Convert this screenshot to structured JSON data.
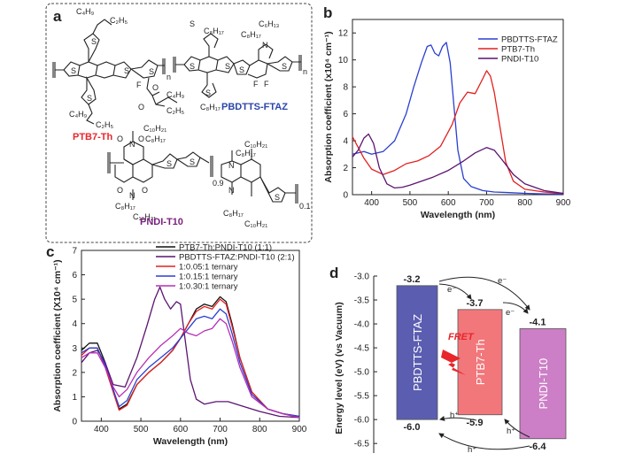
{
  "panels": {
    "a": {
      "letter": "a",
      "molecules": [
        {
          "name": "PTB7-Th",
          "color": "#e8262b"
        },
        {
          "name": "PBDTTS-FTAZ",
          "color": "#2b46a8"
        },
        {
          "name": "PNDI-T10",
          "color": "#7a1f7d"
        }
      ],
      "atoms": {
        "c4h9": "C₄H₉",
        "c2h5": "C₂H₅",
        "c6h13": "C₆H₁₃",
        "c8h17": "C₈H₁₇",
        "c10h21": "C₁₀H₂₁",
        "S": "S",
        "F": "F",
        "O": "O",
        "N": "N",
        "n": "n",
        "frac1": "0.9",
        "frac2": "0.1"
      }
    },
    "b": {
      "letter": "b"
    },
    "c": {
      "letter": "c"
    },
    "d": {
      "letter": "d"
    }
  },
  "chart_data": [
    {
      "type": "line",
      "panel": "b",
      "xlabel": "Wavelength (nm)",
      "ylabel": "Absorption coefficient (x10⁴ cm⁻¹)",
      "xlim": [
        350,
        900
      ],
      "ylim": [
        0,
        13
      ],
      "xticks": [
        400,
        500,
        600,
        700,
        800,
        900
      ],
      "yticks": [
        0,
        2,
        4,
        6,
        8,
        10,
        12
      ],
      "legend_position": "top-right",
      "series": [
        {
          "name": "PBDTTS-FTAZ",
          "color": "#2a3fd1",
          "x": [
            350,
            380,
            400,
            430,
            460,
            490,
            510,
            530,
            545,
            555,
            565,
            575,
            585,
            595,
            605,
            615,
            625,
            640,
            660,
            690,
            720,
            760,
            800,
            850,
            900
          ],
          "y": [
            3.0,
            3.2,
            3.0,
            3.2,
            4.0,
            6.0,
            8.0,
            9.8,
            11.0,
            11.1,
            10.5,
            10.3,
            11.0,
            11.3,
            9.8,
            6.5,
            3.3,
            1.2,
            0.6,
            0.3,
            0.2,
            0.15,
            0.1,
            0.05,
            0.05
          ]
        },
        {
          "name": "PTB7-Th",
          "color": "#e32020",
          "x": [
            350,
            365,
            380,
            400,
            430,
            460,
            490,
            520,
            550,
            580,
            610,
            630,
            650,
            670,
            690,
            700,
            710,
            720,
            735,
            750,
            770,
            800,
            850,
            900
          ],
          "y": [
            4.3,
            3.5,
            2.7,
            1.9,
            1.5,
            1.8,
            2.3,
            2.5,
            2.9,
            3.6,
            5.2,
            6.8,
            7.6,
            7.5,
            8.6,
            9.2,
            8.8,
            7.6,
            5.0,
            2.4,
            1.0,
            0.4,
            0.2,
            0.1
          ]
        },
        {
          "name": "PNDI-T10",
          "color": "#5b1470",
          "x": [
            350,
            365,
            380,
            392,
            405,
            420,
            440,
            460,
            480,
            500,
            530,
            560,
            600,
            640,
            670,
            700,
            720,
            740,
            770,
            800,
            850,
            900
          ],
          "y": [
            2.8,
            3.3,
            4.2,
            4.5,
            3.8,
            2.0,
            0.8,
            0.5,
            0.55,
            0.7,
            1.0,
            1.3,
            1.8,
            2.5,
            3.1,
            3.5,
            3.3,
            2.6,
            1.5,
            0.8,
            0.3,
            0.1
          ]
        }
      ]
    },
    {
      "type": "line",
      "panel": "c",
      "xlabel": "Wavelength (nm)",
      "ylabel": "Absorption coefficient (X10⁴ cm⁻¹)",
      "xlim": [
        350,
        900
      ],
      "ylim": [
        0,
        7
      ],
      "xticks": [
        400,
        500,
        600,
        700,
        800,
        900
      ],
      "yticks": [
        0,
        1,
        2,
        3,
        4,
        5,
        6,
        7
      ],
      "legend_position": "top-right",
      "series": [
        {
          "name": "PTB7-Th:PNDI-T10 (1:1)",
          "color": "#111111",
          "x": [
            350,
            370,
            390,
            410,
            430,
            445,
            465,
            490,
            520,
            550,
            580,
            600,
            620,
            640,
            660,
            680,
            700,
            715,
            730,
            750,
            780,
            820,
            860,
            900
          ],
          "y": [
            2.9,
            3.2,
            3.2,
            2.4,
            1.3,
            0.5,
            0.7,
            1.5,
            2.0,
            2.4,
            2.9,
            3.4,
            4.0,
            4.6,
            4.8,
            4.7,
            5.1,
            4.9,
            4.0,
            2.6,
            1.2,
            0.5,
            0.3,
            0.2
          ]
        },
        {
          "name": "PBDTTS-FTAZ:PNDI-T10 (2:1)",
          "color": "#5b1470",
          "x": [
            350,
            370,
            390,
            410,
            430,
            460,
            490,
            515,
            535,
            548,
            560,
            575,
            590,
            600,
            612,
            625,
            640,
            660,
            690,
            720,
            760,
            800,
            850,
            900
          ],
          "y": [
            2.4,
            2.8,
            2.9,
            2.4,
            1.5,
            1.4,
            2.6,
            3.9,
            5.0,
            5.5,
            5.0,
            4.6,
            4.9,
            4.8,
            3.3,
            1.7,
            0.9,
            0.7,
            0.8,
            0.8,
            0.6,
            0.4,
            0.2,
            0.15
          ]
        },
        {
          "name": "1:0.05:1 ternary",
          "color": "#e32020",
          "x": [
            350,
            370,
            390,
            410,
            430,
            445,
            465,
            490,
            520,
            550,
            580,
            600,
            620,
            640,
            660,
            680,
            700,
            715,
            730,
            750,
            780,
            820,
            860,
            900
          ],
          "y": [
            2.7,
            3.0,
            3.0,
            2.2,
            1.2,
            0.45,
            0.65,
            1.5,
            2.0,
            2.4,
            2.9,
            3.4,
            4.0,
            4.5,
            4.7,
            4.6,
            5.0,
            4.8,
            3.9,
            2.6,
            1.2,
            0.5,
            0.3,
            0.15
          ]
        },
        {
          "name": "1:0.15:1 ternary",
          "color": "#2a3fd1",
          "x": [
            350,
            370,
            390,
            410,
            430,
            445,
            465,
            490,
            520,
            550,
            580,
            600,
            620,
            640,
            660,
            680,
            700,
            715,
            730,
            750,
            780,
            820,
            860,
            900
          ],
          "y": [
            2.8,
            3.0,
            3.0,
            2.3,
            1.3,
            0.6,
            0.85,
            1.7,
            2.2,
            2.6,
            3.0,
            3.4,
            3.8,
            4.2,
            4.3,
            4.2,
            4.6,
            4.4,
            3.6,
            2.4,
            1.1,
            0.5,
            0.3,
            0.2
          ]
        },
        {
          "name": "1:0.30:1 ternary",
          "color": "#b72fb8",
          "x": [
            350,
            370,
            390,
            410,
            430,
            445,
            465,
            490,
            520,
            550,
            580,
            600,
            620,
            640,
            660,
            680,
            700,
            715,
            730,
            750,
            780,
            820,
            860,
            900
          ],
          "y": [
            2.6,
            2.8,
            2.8,
            2.2,
            1.4,
            1.0,
            1.3,
            2.0,
            2.6,
            3.1,
            3.5,
            3.8,
            3.6,
            3.5,
            3.7,
            3.8,
            4.2,
            4.0,
            3.3,
            2.2,
            1.0,
            0.5,
            0.3,
            0.15
          ]
        }
      ]
    },
    {
      "type": "bar",
      "panel": "d",
      "ylabel": "Energy level (eV) (vs Vacuum)",
      "ylim": [
        -6.7,
        -3.0
      ],
      "yticks": [
        -3.0,
        -3.5,
        -4.0,
        -4.5,
        -5.0,
        -5.5,
        -6.0,
        -6.5
      ],
      "levels": [
        {
          "name": "PBDTTS-FTAZ",
          "lumo": -3.2,
          "homo": -6.0,
          "lumo_label": "-3.2",
          "homo_label": "-6.0",
          "color": "#5a5db0"
        },
        {
          "name": "PTB7-Th",
          "lumo": -3.7,
          "homo": -5.9,
          "lumo_label": "-3.7",
          "homo_label": "-5.9",
          "color": "#f2777b"
        },
        {
          "name": "PNDI-T10",
          "lumo": -4.1,
          "homo": -6.4,
          "lumo_label": "-4.1",
          "homo_label": "-6.4",
          "color": "#cc7fc6"
        }
      ],
      "annotations": {
        "fret": "FRET",
        "electron": "e⁻",
        "hole": "h⁺"
      }
    }
  ]
}
